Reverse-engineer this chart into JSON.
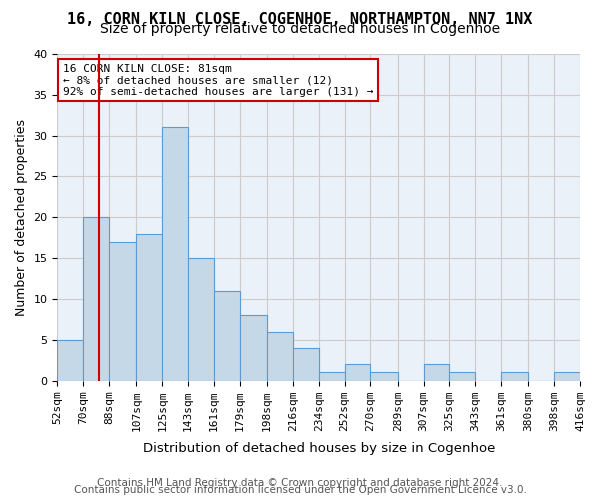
{
  "title": "16, CORN KILN CLOSE, COGENHOE, NORTHAMPTON, NN7 1NX",
  "subtitle": "Size of property relative to detached houses in Cogenhoe",
  "xlabel": "Distribution of detached houses by size in Cogenhoe",
  "ylabel": "Number of detached properties",
  "bar_values": [
    5,
    20,
    17,
    18,
    31,
    15,
    11,
    8,
    6,
    4,
    1,
    2,
    1,
    0,
    2,
    1,
    0,
    1,
    0,
    1
  ],
  "bin_labels": [
    "52sqm",
    "70sqm",
    "88sqm",
    "107sqm",
    "125sqm",
    "143sqm",
    "161sqm",
    "179sqm",
    "198sqm",
    "216sqm",
    "234sqm",
    "252sqm",
    "270sqm",
    "289sqm",
    "307sqm",
    "325sqm",
    "343sqm",
    "361sqm",
    "380sqm",
    "398sqm",
    "416sqm"
  ],
  "bin_edges": [
    52,
    70,
    88,
    107,
    125,
    143,
    161,
    179,
    198,
    216,
    234,
    252,
    270,
    289,
    307,
    325,
    343,
    361,
    380,
    398,
    416
  ],
  "bar_color": "#c5d8e8",
  "bar_edge_color": "#5b9bd5",
  "vline_x": 81,
  "vline_color": "#cc0000",
  "annotation_text": "16 CORN KILN CLOSE: 81sqm\n← 8% of detached houses are smaller (12)\n92% of semi-detached houses are larger (131) →",
  "annotation_box_color": "#ffffff",
  "annotation_box_edge": "#cc0000",
  "ylim": [
    0,
    40
  ],
  "yticks": [
    0,
    5,
    10,
    15,
    20,
    25,
    30,
    35,
    40
  ],
  "grid_color": "#cccccc",
  "bg_color": "#eaf1f8",
  "footer_line1": "Contains HM Land Registry data © Crown copyright and database right 2024.",
  "footer_line2": "Contains public sector information licensed under the Open Government Licence v3.0.",
  "title_fontsize": 11,
  "subtitle_fontsize": 10,
  "axis_label_fontsize": 9,
  "tick_fontsize": 8,
  "footer_fontsize": 7.5
}
